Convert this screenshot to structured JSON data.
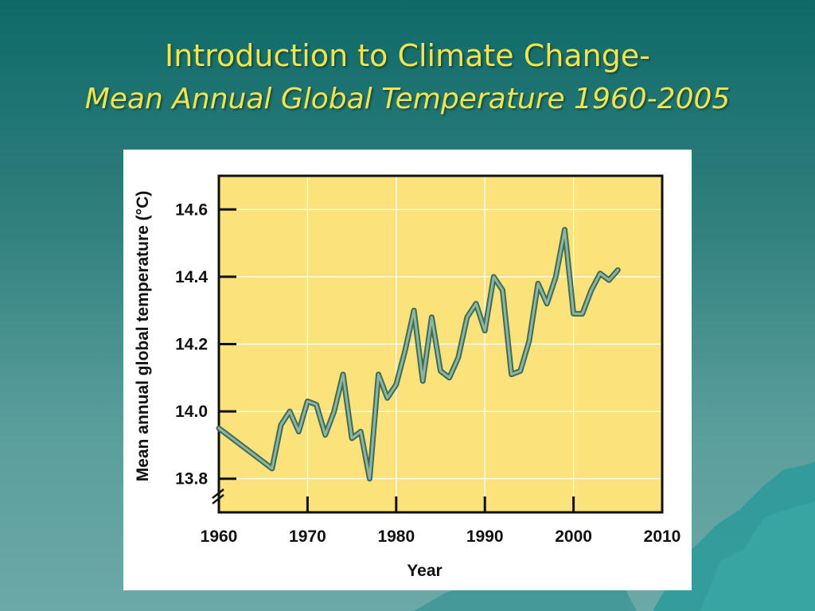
{
  "slide": {
    "title_line1": "Introduction to Climate Change-",
    "title_line2": "Mean Annual Global Temperature 1960-2005"
  },
  "colors": {
    "title": "#f2e44c",
    "plot_background": "#fbe27b",
    "line_outer": "#3d6c58",
    "line_inner": "#8fb5a1"
  },
  "chart_data": {
    "type": "line",
    "title": "",
    "xlabel": "Year",
    "ylabel": "Mean annual global temperature (°C)",
    "xlim": [
      1960,
      2010
    ],
    "ylim": [
      13.7,
      14.7
    ],
    "x_ticks": [
      "1960",
      "1970",
      "1980",
      "1990",
      "2000",
      "2010"
    ],
    "y_ticks": [
      "13.8",
      "14.0",
      "14.2",
      "14.4",
      "14.6"
    ],
    "grid": true,
    "axis_break": "y",
    "series": [
      {
        "x": [
          1960,
          1961,
          1962,
          1963,
          1964,
          1965,
          1966,
          1967,
          1968,
          1969,
          1970,
          1971,
          1972,
          1973,
          1974,
          1975,
          1976,
          1977,
          1978,
          1979,
          1980,
          1981,
          1982,
          1983,
          1984,
          1985,
          1986,
          1987,
          1988,
          1989,
          1990,
          1991,
          1992,
          1993,
          1994,
          1995,
          1996,
          1997,
          1998,
          1999,
          2000,
          2001,
          2002,
          2003,
          2004,
          2005
        ],
        "values": [
          13.95,
          13.93,
          13.91,
          13.89,
          13.87,
          13.85,
          13.83,
          13.96,
          14.0,
          13.94,
          14.03,
          14.02,
          13.93,
          14.0,
          14.11,
          13.92,
          13.94,
          13.8,
          14.11,
          14.04,
          14.08,
          14.18,
          14.3,
          14.09,
          14.28,
          14.12,
          14.1,
          14.16,
          14.28,
          14.32,
          14.24,
          14.4,
          14.36,
          14.11,
          14.12,
          14.21,
          14.38,
          14.32,
          14.4,
          14.54,
          14.29,
          14.29,
          14.36,
          14.41,
          14.39,
          14.42
        ]
      }
    ]
  }
}
